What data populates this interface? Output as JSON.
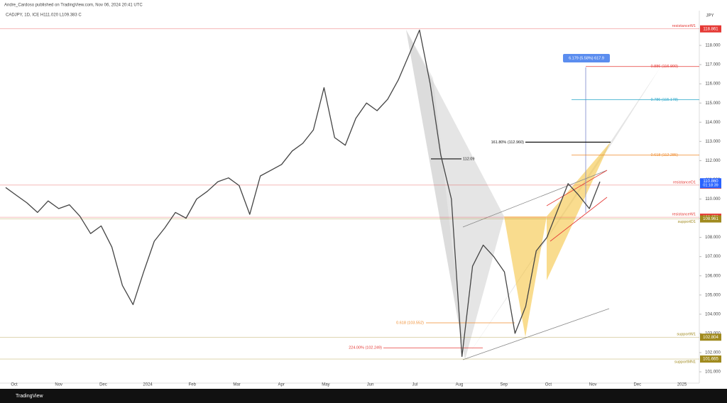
{
  "header": "Andre_Cardoso published on TradingView.com, Nov 06, 2024 20:41 UTC",
  "footer": "TradingView",
  "chart_data": {
    "type": "line",
    "title": "CADJPY, 1D, ICE  H111.020  L109.383  C",
    "currency": "JPY",
    "xticks": [
      "Oct",
      "Nov",
      "Dec",
      "2024",
      "Feb",
      "Mar",
      "Apr",
      "May",
      "Jun",
      "Jul",
      "Aug",
      "Sep",
      "Oct",
      "Nov",
      "Dec",
      "2025"
    ],
    "series": [
      {
        "name": "CADJPY",
        "color": "#444444",
        "values": [
          110.6,
          110.2,
          109.8,
          109.3,
          109.9,
          109.5,
          109.7,
          109.1,
          108.2,
          108.6,
          107.5,
          105.5,
          104.5,
          106.2,
          107.8,
          108.5,
          109.3,
          109.0,
          110.0,
          110.4,
          110.9,
          111.1,
          110.7,
          109.2,
          111.2,
          111.5,
          111.8,
          112.5,
          112.9,
          113.6,
          115.8,
          113.2,
          112.8,
          114.2,
          115.0,
          114.6,
          115.2,
          116.2,
          117.5,
          118.8,
          116.0,
          112.3,
          110.0,
          101.8,
          106.5,
          107.6,
          107.0,
          106.2,
          103.0,
          104.4,
          107.3,
          108.0,
          109.4,
          110.8,
          110.2,
          109.5,
          110.9
        ]
      }
    ],
    "ylim": [
      100.41,
      119.7
    ],
    "yticks": [
      {
        "value": 101,
        "label": "101.000"
      },
      {
        "value": 102,
        "label": "102.000"
      },
      {
        "value": 103,
        "label": "103.000"
      },
      {
        "value": 104,
        "label": "104.000"
      },
      {
        "value": 105,
        "label": "105.000"
      },
      {
        "value": 106,
        "label": "106.000"
      },
      {
        "value": 107,
        "label": "107.000"
      },
      {
        "value": 108,
        "label": "108.000"
      },
      {
        "value": 109,
        "label": "109.000"
      },
      {
        "value": 110,
        "label": "110.000"
      },
      {
        "value": 111,
        "label": "111.000"
      },
      {
        "value": 112,
        "label": "112.000"
      },
      {
        "value": 113,
        "label": "113.000"
      },
      {
        "value": 114,
        "label": "114.000"
      },
      {
        "value": 115,
        "label": "115.000"
      },
      {
        "value": 116,
        "label": "116.000"
      },
      {
        "value": 117,
        "label": "117.000"
      },
      {
        "value": 118,
        "label": "118.000"
      }
    ],
    "levels": [
      {
        "name": "resistanceW1",
        "value": 118.861,
        "label": "118.861",
        "color": "#e53935"
      },
      {
        "name": "resistanceD1",
        "value": 110.724,
        "label": "110.724",
        "color": "#e53935"
      },
      {
        "name": "resistanceW1",
        "value": 109.053,
        "label": "109.053",
        "color": "#e53935"
      },
      {
        "name": "supportD1",
        "value": 108.961,
        "label": "108.961",
        "color": "#a08a1e"
      },
      {
        "name": "supportW1",
        "value": 102.804,
        "label": "102.804",
        "color": "#a08a1e"
      },
      {
        "name": "supportMN1",
        "value": 101.665,
        "label": "101.665",
        "color": "#a08a1e"
      }
    ],
    "last_price": {
      "value": 110.86,
      "label": "110.860",
      "countdown": "01:18:39",
      "color": "#2962ff"
    },
    "annotations": [
      {
        "text": "0.886 (116.900)",
        "value": 116.9,
        "color": "#e53935"
      },
      {
        "text": "0.786 (115.178)",
        "value": 115.178,
        "color": "#26a6c9"
      },
      {
        "text": "0.618 (112.285)",
        "value": 112.285,
        "color": "#f08c2e"
      },
      {
        "text": "161.80% (112.960)",
        "value": 112.96,
        "color": "#111111"
      },
      {
        "text": "112.09",
        "value": 112.09,
        "color": "#111111"
      },
      {
        "text": "0.618 (103.552)",
        "value": 103.552,
        "color": "#f08c2e"
      },
      {
        "text": "224.00% (102.249)",
        "value": 102.249,
        "color": "#e53935"
      }
    ],
    "measure": "6.179 (5.58%) 617.9"
  }
}
